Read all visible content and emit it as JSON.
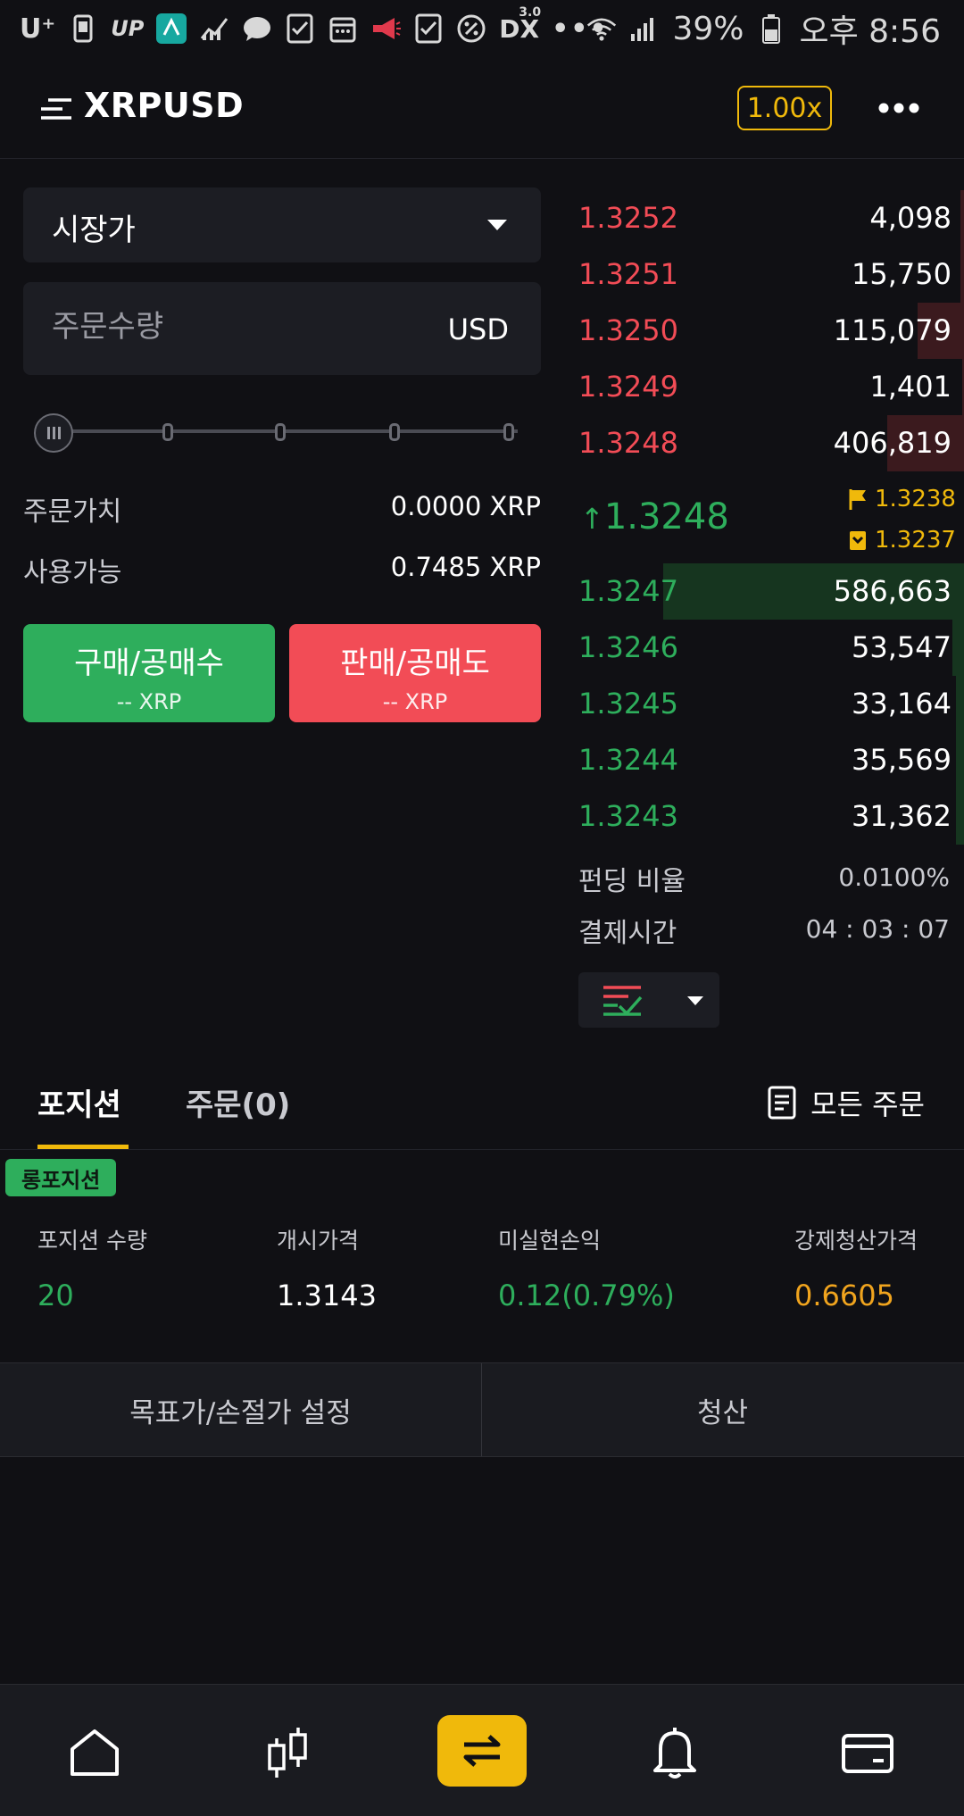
{
  "status_bar": {
    "left_text_1": "U⁺",
    "left_text_2": "UP",
    "left_text_3": "DX",
    "left_text_4": "3.0",
    "battery": "39%",
    "time": "오후 8:56"
  },
  "header": {
    "symbol": "XRPUSD",
    "leverage": "1.00x"
  },
  "order_form": {
    "order_type": "시장가",
    "quantity_placeholder": "주문수량",
    "quantity_unit": "USD",
    "order_value_label": "주문가치",
    "order_value": "0.0000 XRP",
    "available_label": "사용가능",
    "available": "0.7485 XRP",
    "buy_label": "구매/공매수",
    "buy_sub": "-- XRP",
    "sell_label": "판매/공매도",
    "sell_sub": "-- XRP"
  },
  "order_book": {
    "asks": [
      {
        "price": "1.3252",
        "qty": "4,098",
        "depth": 0.01
      },
      {
        "price": "1.3251",
        "qty": "15,750",
        "depth": 0.01
      },
      {
        "price": "1.3250",
        "qty": "115,079",
        "depth": 0.12
      },
      {
        "price": "1.3249",
        "qty": "1,401",
        "depth": 0.005
      },
      {
        "price": "1.3248",
        "qty": "406,819",
        "depth": 0.2
      }
    ],
    "last_price": "1.3248",
    "mark_price": "1.3238",
    "index_price": "1.3237",
    "bids": [
      {
        "price": "1.3247",
        "qty": "586,663",
        "depth": 0.78
      },
      {
        "price": "1.3246",
        "qty": "53,547",
        "depth": 0.03
      },
      {
        "price": "1.3245",
        "qty": "33,164",
        "depth": 0.02
      },
      {
        "price": "1.3244",
        "qty": "35,569",
        "depth": 0.02
      },
      {
        "price": "1.3243",
        "qty": "31,362",
        "depth": 0.02
      }
    ],
    "funding_label": "펀딩 비율",
    "funding_rate": "0.0100%",
    "settlement_label": "결제시간",
    "settlement_time": "04 : 03 : 07"
  },
  "tabs": {
    "positions": "포지션",
    "orders": "주문(0)",
    "all_orders": "모든 주문"
  },
  "position": {
    "badge": "롱포지션",
    "size_label": "포지션 수량",
    "size": "20",
    "entry_label": "개시가격",
    "entry": "1.3143",
    "pnl_label": "미실현손익",
    "pnl": "0.12(0.79%)",
    "liq_label": "강제청산가격",
    "liq": "0.6605",
    "tpsl_button": "목표가/손절가 설정",
    "close_button": "청산"
  },
  "colors": {
    "accent": "#f0b90b",
    "buy": "#2eae5c",
    "sell": "#f24c56",
    "background": "#101014"
  },
  "icons": {
    "menu": "menu-lines-icon",
    "more": "more-dots-icon",
    "nav": [
      "home-icon",
      "candlestick-icon",
      "trade-swap-icon",
      "bell-icon",
      "wallet-icon"
    ]
  }
}
